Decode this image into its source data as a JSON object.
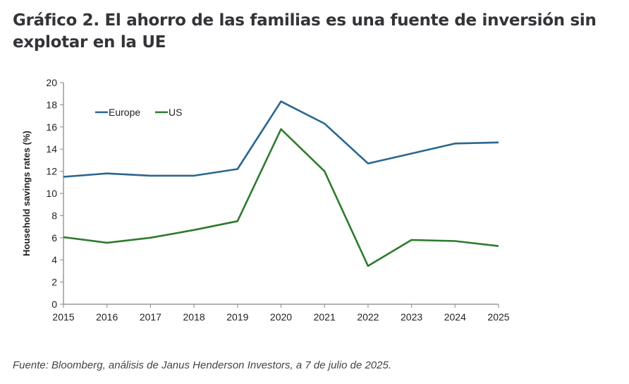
{
  "page": {
    "title": "Gráfico 2. El ahorro de las familias es una fuente de inversión sin explotar en la UE",
    "source": "Fuente: Bloomberg, análisis de Janus Henderson Investors, a 7 de julio de 2025."
  },
  "chart_data": {
    "type": "line",
    "title": "",
    "xlabel": "",
    "ylabel": "Household savings rates (%)",
    "x": [
      "2015",
      "2016",
      "2017",
      "2018",
      "2019",
      "2020",
      "2021",
      "2022",
      "2023",
      "2024",
      "2025"
    ],
    "ylim": [
      0,
      20
    ],
    "yticks": [
      0,
      2,
      4,
      6,
      8,
      10,
      12,
      14,
      16,
      18,
      20
    ],
    "grid": false,
    "legend_position": "top-left",
    "series": [
      {
        "name": "Europe",
        "color": "#2a6690",
        "values": [
          11.5,
          11.8,
          11.6,
          11.6,
          12.2,
          18.3,
          16.3,
          12.7,
          13.6,
          14.5,
          14.6
        ]
      },
      {
        "name": "US",
        "color": "#2e7a2e",
        "values": [
          6.05,
          5.55,
          6.0,
          6.7,
          7.5,
          15.8,
          12.0,
          3.45,
          5.8,
          5.7,
          5.25
        ]
      }
    ]
  }
}
